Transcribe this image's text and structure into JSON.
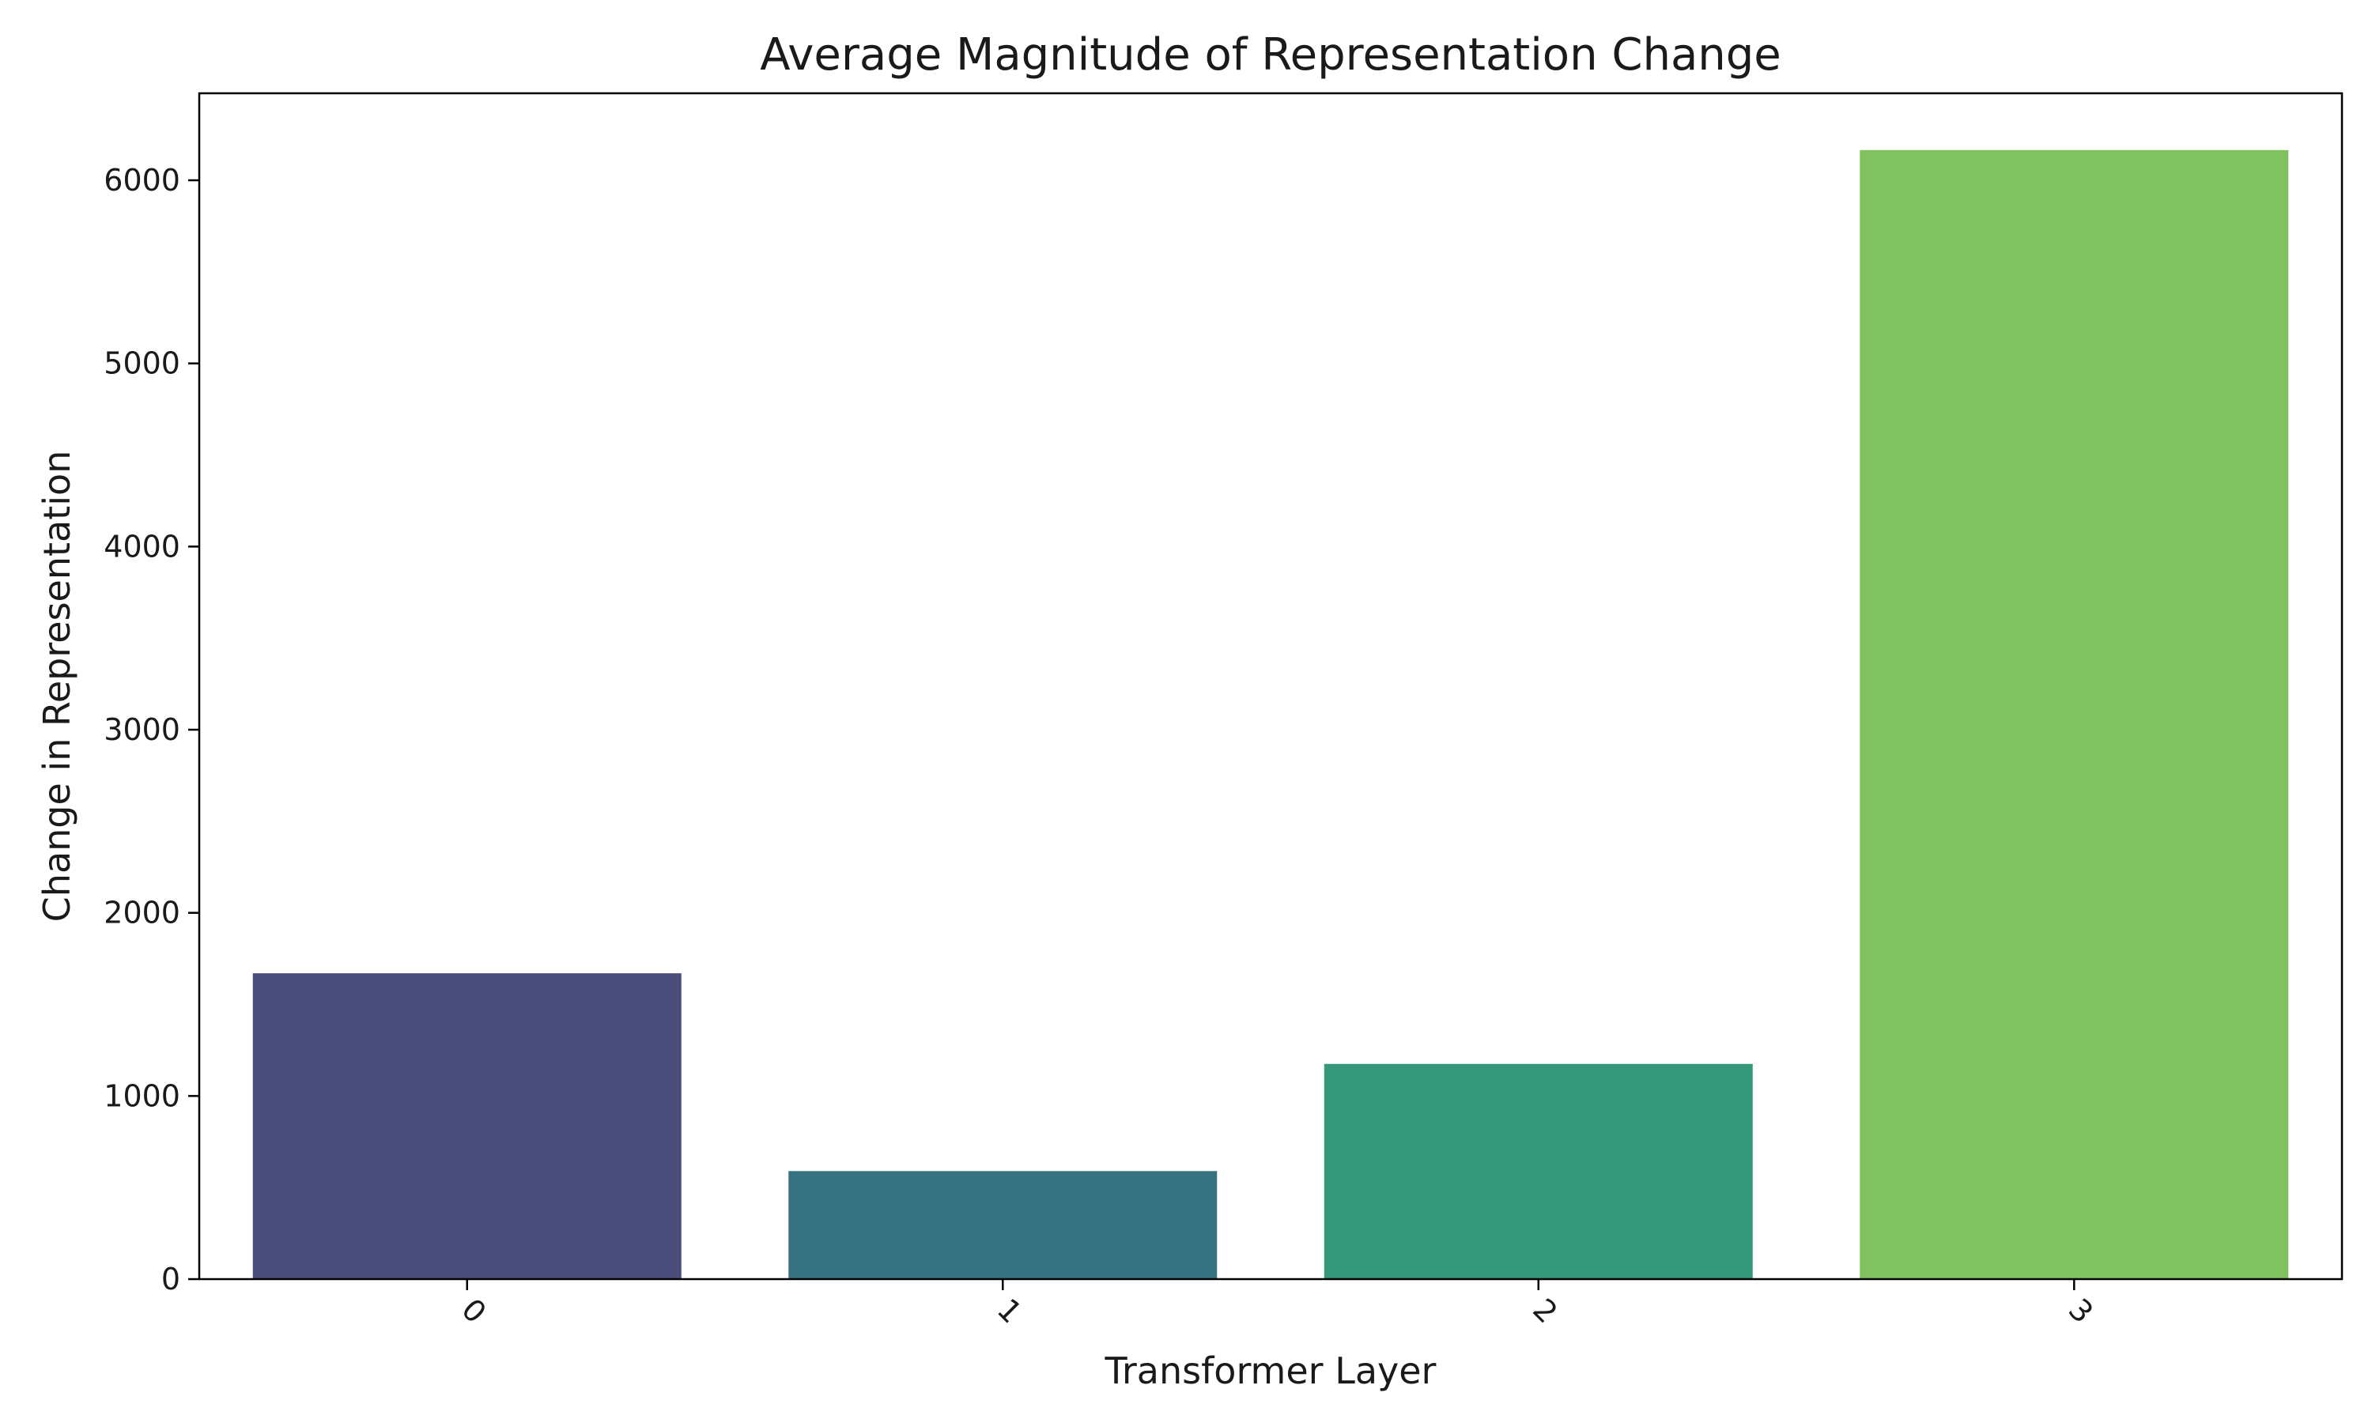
{
  "chart_data": {
    "type": "bar",
    "title": "Average Magnitude of Representation Change",
    "xlabel": "Transformer Layer",
    "ylabel": "Change in Representation",
    "categories": [
      "0",
      "1",
      "2",
      "3"
    ],
    "values": [
      1670,
      590,
      1175,
      6165
    ],
    "colors": [
      "#4b4d7c",
      "#36727f",
      "#35987b",
      "#80c260"
    ],
    "ylim": [
      0,
      6475
    ],
    "yticks": [
      0,
      1000,
      2000,
      3000,
      4000,
      5000,
      6000
    ],
    "ytick_labels": [
      "0",
      "1000",
      "2000",
      "3000",
      "4000",
      "5000",
      "6000"
    ],
    "xtick_rotation": 45,
    "grid": false,
    "legend": false
  }
}
